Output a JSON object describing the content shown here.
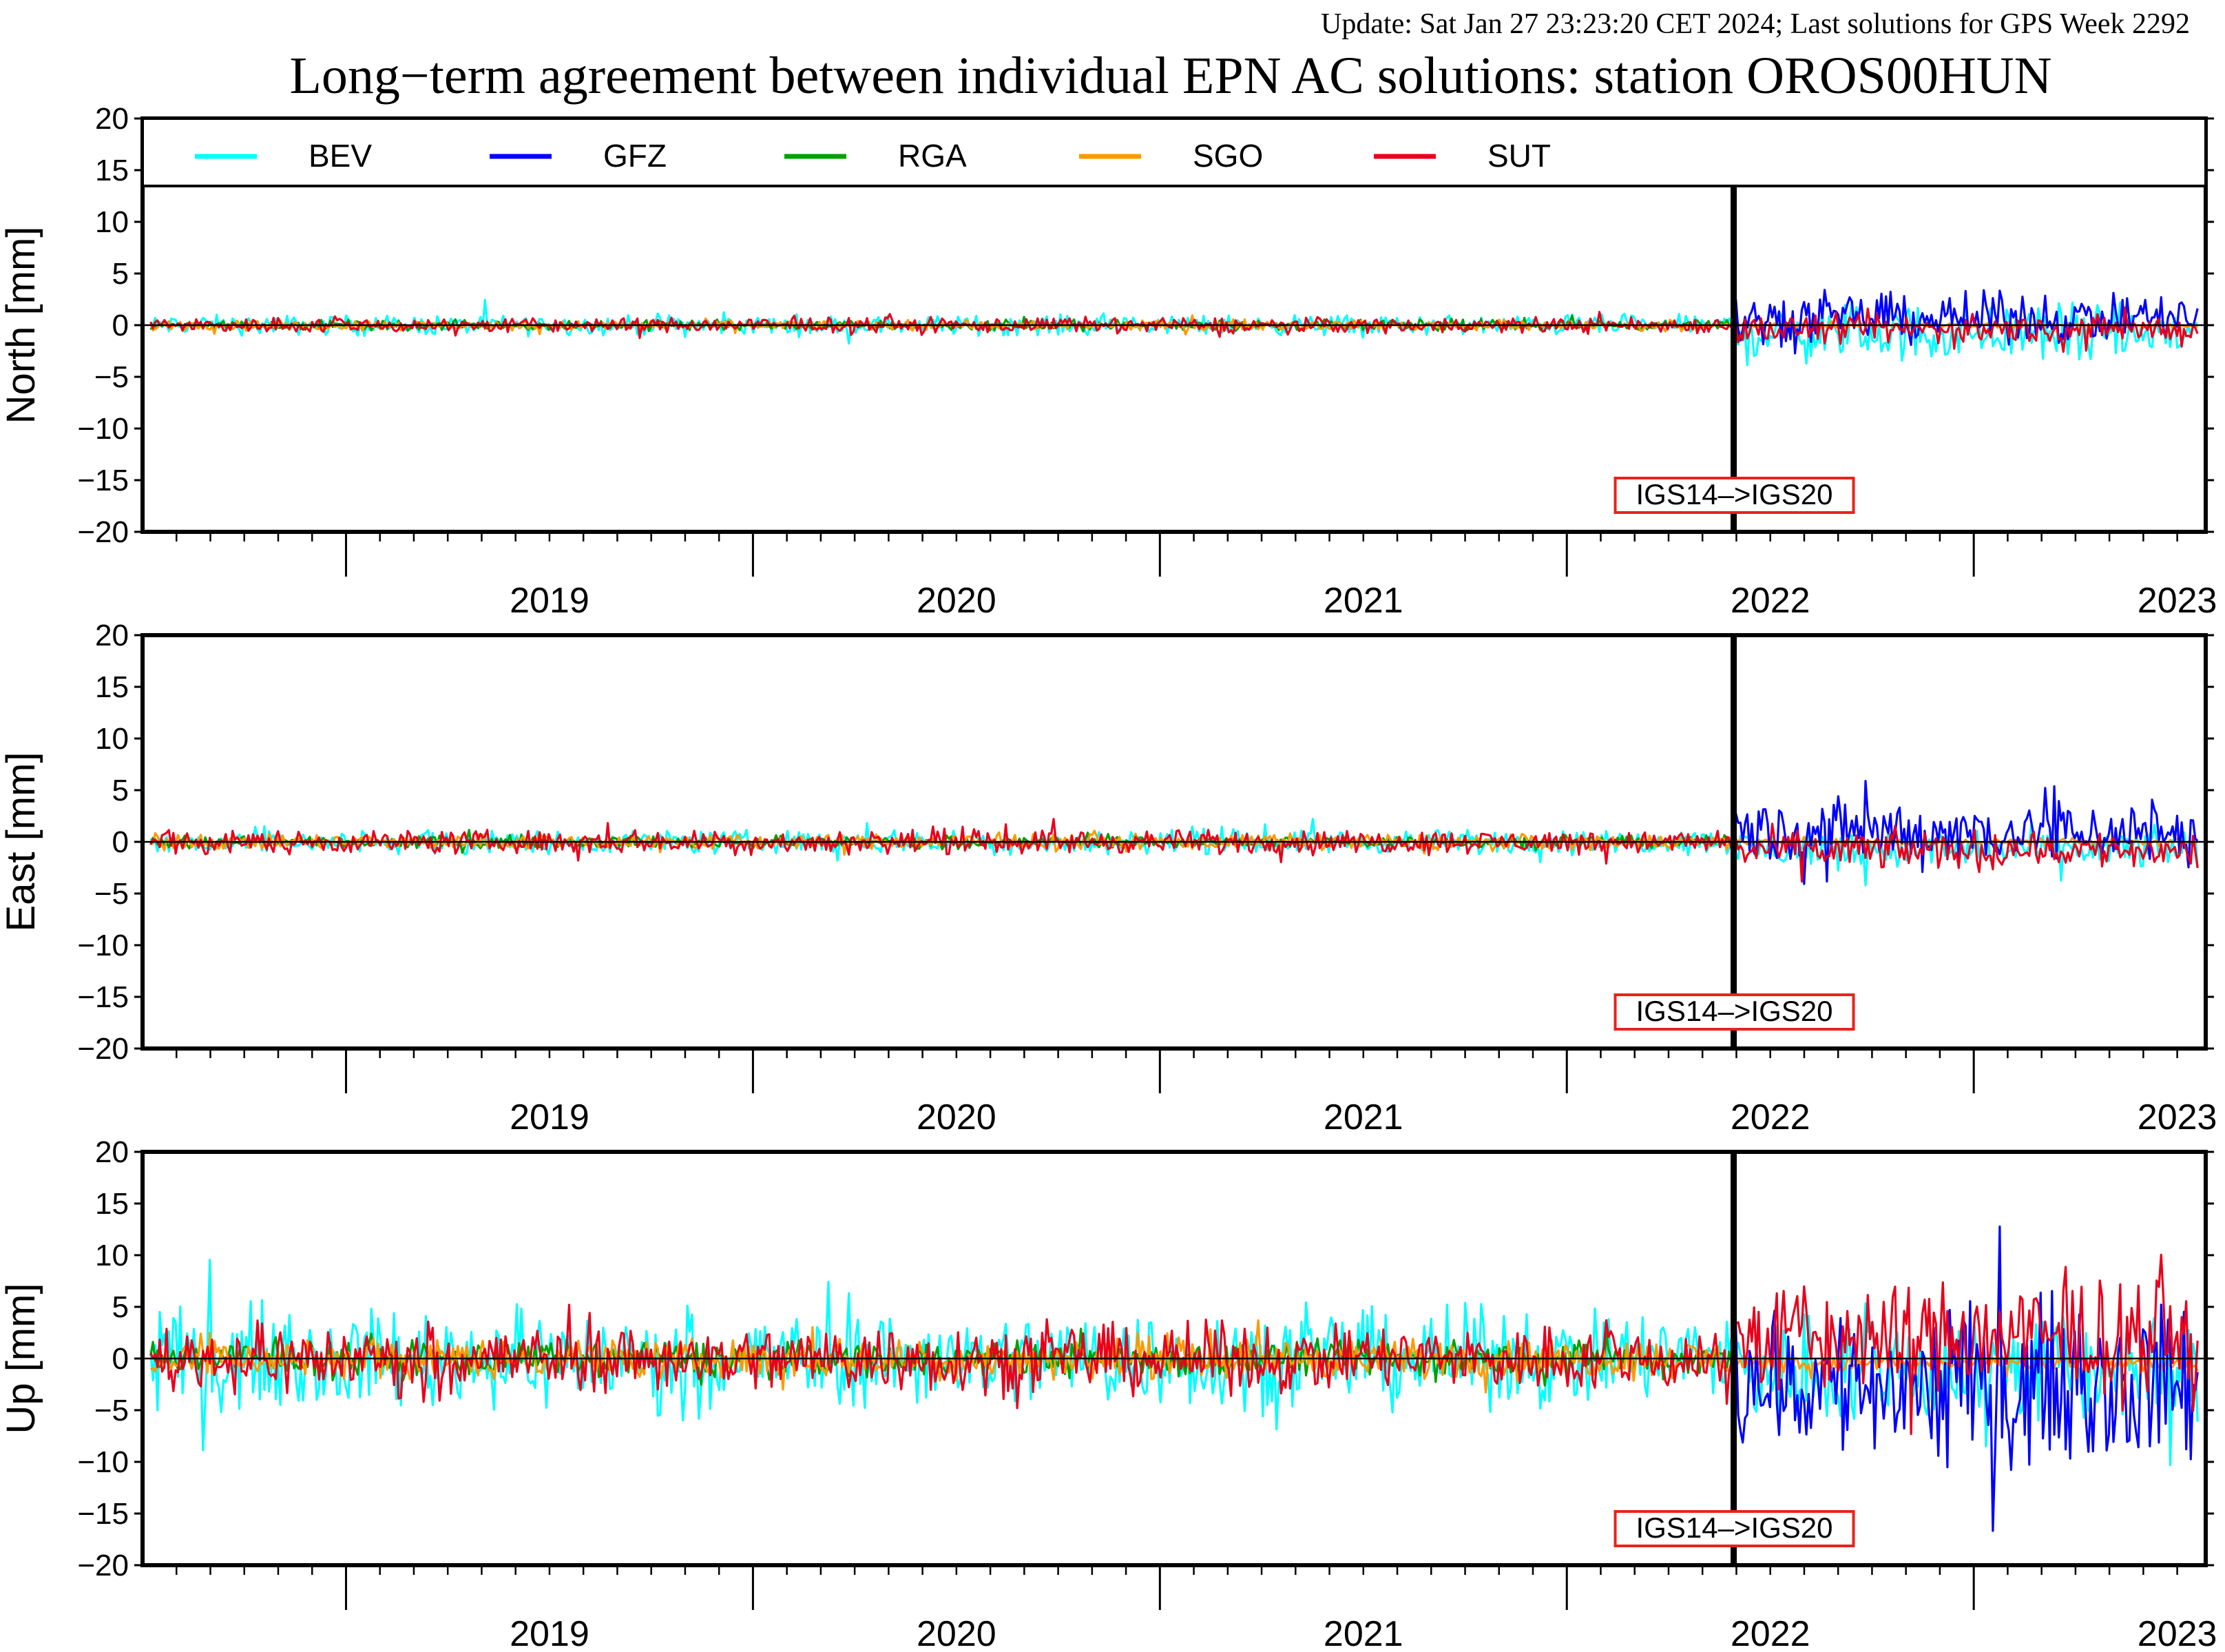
{
  "header": {
    "update_line": "Update: Sat Jan 27 23:23:20 CET 2024; Last solutions for GPS Week 2292",
    "title": "Long−term agreement between individual EPN AC solutions: station OROS00HUN"
  },
  "colors": {
    "update_text": "#8b1a1a",
    "zero_line": "#000000",
    "frame_change_box": "#e8231c"
  },
  "legend": [
    {
      "name": "BEV",
      "color": "#00ffff"
    },
    {
      "name": "GFZ",
      "color": "#0000ff"
    },
    {
      "name": "RGA",
      "color": "#00a000"
    },
    {
      "name": "SGO",
      "color": "#ff9900"
    },
    {
      "name": "SUT",
      "color": "#e8001c"
    }
  ],
  "frame_change_label": "IGS14–>IGS20",
  "chart_data": [
    {
      "type": "line",
      "component": "north",
      "ylabel": "North [mm]",
      "ylim": [
        -20,
        20
      ],
      "yticks": [
        20,
        15,
        10,
        5,
        0,
        -5,
        -10,
        -15,
        -20
      ],
      "xlim": [
        2018.5,
        2023.57
      ],
      "xtick_labels": [
        "2019",
        "2020",
        "2021",
        "2022",
        "2023"
      ],
      "frame_change_x": 2022.41,
      "grid": false,
      "legend_position": "top",
      "series": [
        {
          "name": "BEV",
          "amplitude_before": 1.0,
          "amplitude_after": 3.0,
          "mean_after": -0.8
        },
        {
          "name": "GFZ",
          "amplitude_before": 0.0,
          "amplitude_after": 2.5,
          "mean_after": 0.7
        },
        {
          "name": "RGA",
          "amplitude_before": 0.5,
          "amplitude_after": 0.0,
          "mean_after": 0.0
        },
        {
          "name": "SGO",
          "amplitude_before": 0.5,
          "amplitude_after": 0.3,
          "mean_after": 0.0
        },
        {
          "name": "SUT",
          "amplitude_before": 0.8,
          "amplitude_after": 1.5,
          "mean_after": -0.4
        }
      ]
    },
    {
      "type": "line",
      "component": "east",
      "ylabel": "East [mm]",
      "ylim": [
        -20,
        20
      ],
      "yticks": [
        20,
        15,
        10,
        5,
        0,
        -5,
        -10,
        -15,
        -20
      ],
      "xlim": [
        2018.5,
        2023.57
      ],
      "xtick_labels": [
        "2019",
        "2020",
        "2021",
        "2022",
        "2023"
      ],
      "frame_change_x": 2022.41,
      "grid": false,
      "series": [
        {
          "name": "BEV",
          "amplitude_before": 1.2,
          "amplitude_after": 2.0,
          "mean_after": -0.7
        },
        {
          "name": "GFZ",
          "amplitude_before": 0.0,
          "amplitude_after": 3.5,
          "mean_after": 1.0
        },
        {
          "name": "RGA",
          "amplitude_before": 0.6,
          "amplitude_after": 0.0,
          "mean_after": 0.0
        },
        {
          "name": "SGO",
          "amplitude_before": 0.8,
          "amplitude_after": 0.3,
          "mean_after": 0.0
        },
        {
          "name": "SUT",
          "amplitude_before": 1.2,
          "amplitude_after": 2.0,
          "mean_after": -0.8
        }
      ]
    },
    {
      "type": "line",
      "component": "up",
      "ylabel": "Up [mm]",
      "ylim": [
        -20,
        20
      ],
      "yticks": [
        20,
        15,
        10,
        5,
        0,
        -5,
        -10,
        -15,
        -20
      ],
      "xlim": [
        2018.5,
        2023.57
      ],
      "xtick_labels": [
        "2019",
        "2020",
        "2021",
        "2022",
        "2023"
      ],
      "frame_change_x": 2022.41,
      "grid": false,
      "series": [
        {
          "name": "BEV",
          "amplitude_before": 5.0,
          "amplitude_after": 6.0,
          "mean_after": -1.0
        },
        {
          "name": "GFZ",
          "amplitude_before": 0.0,
          "amplitude_after": 8.0,
          "mean_after": -2.5
        },
        {
          "name": "RGA",
          "amplitude_before": 1.8,
          "amplitude_after": 0.0,
          "mean_after": 0.0
        },
        {
          "name": "SGO",
          "amplitude_before": 2.0,
          "amplitude_after": 0.8,
          "mean_after": -0.5
        },
        {
          "name": "SUT",
          "amplitude_before": 3.5,
          "amplitude_after": 6.0,
          "mean_after": 2.0
        }
      ]
    }
  ]
}
